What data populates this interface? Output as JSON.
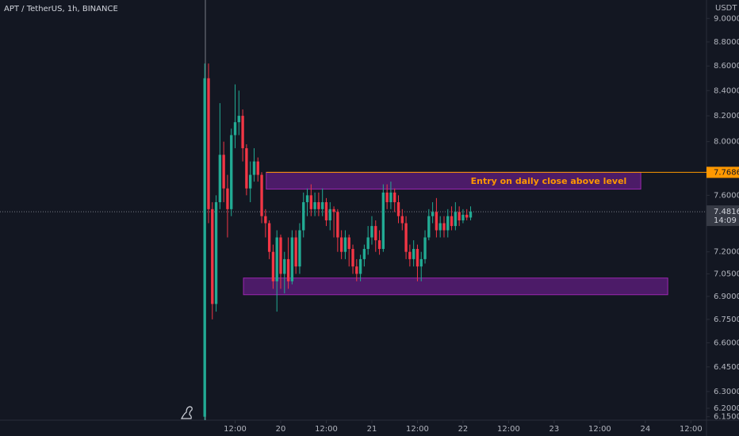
{
  "chart_data": {
    "type": "candlestick",
    "title": "APT / TetherUS, 1h, BINANCE",
    "y_axis_label": "USDT",
    "log_scale": true,
    "up_color": "#22ab94",
    "down_color": "#f23645",
    "x": [
      -20,
      -19,
      -18,
      -17,
      -16,
      -15,
      -14,
      -13,
      -12,
      -11,
      -10,
      -9,
      -8,
      -7,
      -6,
      -5,
      -4,
      -3,
      -2,
      -1,
      0,
      1,
      2,
      3,
      4,
      5,
      6,
      7,
      8,
      9,
      10,
      11,
      12,
      13,
      14,
      15,
      16,
      17,
      18,
      19,
      20,
      21,
      22,
      23,
      24,
      25,
      26,
      27,
      28,
      29,
      30,
      31,
      32,
      33,
      34,
      35,
      36,
      37,
      38,
      39,
      40,
      41,
      42,
      43,
      44,
      45,
      46,
      47,
      48,
      49,
      50
    ],
    "open": [
      6.15,
      8.5,
      7.5,
      6.85,
      7.55,
      7.9,
      7.65,
      7.5,
      8.05,
      8.15,
      8.2,
      7.95,
      7.65,
      7.75,
      7.85,
      7.75,
      7.45,
      7.4,
      7.2,
      7.0,
      7.3,
      7.05,
      7.15,
      7.0,
      7.3,
      7.1,
      7.35,
      7.55,
      7.6,
      7.5,
      7.55,
      7.5,
      7.55,
      7.42,
      7.5,
      7.48,
      7.3,
      7.2,
      7.3,
      7.22,
      7.1,
      7.05,
      7.15,
      7.22,
      7.3,
      7.38,
      7.28,
      7.22,
      7.62,
      7.55,
      7.62,
      7.55,
      7.45,
      7.4,
      7.2,
      7.15,
      7.22,
      7.1,
      7.15,
      7.3,
      7.45,
      7.48,
      7.35,
      7.4,
      7.35,
      7.45,
      7.38,
      7.48,
      7.42,
      7.46,
      7.44
    ],
    "high": [
      8.62,
      8.62,
      7.55,
      7.6,
      8.3,
      8.0,
      7.75,
      8.1,
      8.45,
      8.4,
      8.25,
      7.98,
      7.85,
      7.95,
      7.88,
      7.77,
      7.5,
      7.42,
      7.25,
      7.35,
      7.32,
      7.2,
      7.3,
      7.35,
      7.35,
      7.4,
      7.62,
      7.65,
      7.68,
      7.62,
      7.62,
      7.65,
      7.58,
      7.55,
      7.52,
      7.5,
      7.35,
      7.35,
      7.32,
      7.25,
      7.15,
      7.18,
      7.25,
      7.38,
      7.45,
      7.42,
      7.35,
      7.68,
      7.68,
      7.7,
      7.65,
      7.6,
      7.5,
      7.45,
      7.25,
      7.28,
      7.25,
      7.2,
      7.35,
      7.5,
      7.55,
      7.58,
      7.45,
      7.45,
      7.5,
      7.52,
      7.55,
      7.52,
      7.5,
      7.5,
      7.52
    ],
    "low": [
      6.13,
      7.4,
      6.75,
      6.8,
      7.5,
      7.55,
      7.3,
      7.45,
      7.95,
      8.05,
      7.85,
      7.6,
      7.55,
      7.7,
      7.7,
      7.4,
      7.3,
      7.15,
      6.95,
      6.8,
      6.95,
      6.92,
      6.95,
      6.98,
      7.05,
      7.05,
      7.3,
      7.45,
      7.45,
      7.45,
      7.45,
      7.45,
      7.38,
      7.35,
      7.3,
      7.2,
      7.15,
      7.15,
      7.1,
      7.05,
      7.0,
      7.0,
      7.1,
      7.18,
      7.25,
      7.2,
      7.18,
      7.2,
      7.5,
      7.5,
      7.48,
      7.4,
      7.35,
      7.15,
      7.1,
      7.1,
      7.0,
      7.0,
      7.12,
      7.28,
      7.4,
      7.3,
      7.3,
      7.3,
      7.3,
      7.35,
      7.35,
      7.38,
      7.4,
      7.42,
      7.42
    ],
    "close": [
      8.5,
      7.5,
      6.85,
      7.55,
      7.9,
      7.65,
      7.5,
      8.05,
      8.15,
      8.2,
      7.95,
      7.65,
      7.75,
      7.85,
      7.75,
      7.45,
      7.4,
      7.2,
      7.0,
      7.3,
      7.05,
      7.15,
      7.0,
      7.3,
      7.1,
      7.35,
      7.55,
      7.6,
      7.5,
      7.55,
      7.5,
      7.55,
      7.42,
      7.5,
      7.48,
      7.3,
      7.2,
      7.3,
      7.22,
      7.1,
      7.05,
      7.15,
      7.22,
      7.3,
      7.38,
      7.28,
      7.22,
      7.62,
      7.55,
      7.62,
      7.55,
      7.45,
      7.4,
      7.2,
      7.15,
      7.22,
      7.1,
      7.15,
      7.3,
      7.45,
      7.48,
      7.35,
      7.4,
      7.35,
      7.45,
      7.38,
      7.48,
      7.42,
      7.46,
      7.44,
      7.4816
    ],
    "xlim": [
      -73.9,
      112.1
    ],
    "xticks": [
      {
        "value": -12,
        "label": "12:00"
      },
      {
        "value": 0,
        "label": "20"
      },
      {
        "value": 12,
        "label": "12:00"
      },
      {
        "value": 24,
        "label": "21"
      },
      {
        "value": 36,
        "label": "12:00"
      },
      {
        "value": 48,
        "label": "22"
      },
      {
        "value": 60,
        "label": "12:00"
      },
      {
        "value": 72,
        "label": "23"
      },
      {
        "value": 84,
        "label": "12:00"
      },
      {
        "value": 96,
        "label": "24"
      },
      {
        "value": 108,
        "label": "12:00"
      }
    ],
    "ylim": [
      6.13,
      9.16
    ],
    "yticks": [
      {
        "value": 9,
        "label": "9.0000"
      },
      {
        "value": 8.8,
        "label": "8.8000"
      },
      {
        "value": 8.6,
        "label": "8.6000"
      },
      {
        "value": 8.4,
        "label": "8.4000"
      },
      {
        "value": 8.2,
        "label": "8.2000"
      },
      {
        "value": 8,
        "label": "8.0000"
      },
      {
        "value": 7.6,
        "label": "7.6000"
      },
      {
        "value": 7.2,
        "label": "7.2000"
      },
      {
        "value": 7.05,
        "label": "7.0500"
      },
      {
        "value": 6.9,
        "label": "6.9000"
      },
      {
        "value": 6.75,
        "label": "6.7500"
      },
      {
        "value": 6.6,
        "label": "6.6000"
      },
      {
        "value": 6.45,
        "label": "6.4500"
      },
      {
        "value": 6.3,
        "label": "6.3000"
      },
      {
        "value": 6.2,
        "label": "6.2000"
      },
      {
        "value": 6.15,
        "label": "6.1500"
      }
    ],
    "last_price": {
      "value": 7.4816,
      "label": "7.4816"
    },
    "countdown": "14:09",
    "level": {
      "value": 7.7686,
      "label": "7.7686",
      "start": -3.8,
      "color": "#ff9800"
    },
    "annotation": "Entry on daily close above level",
    "zones": [
      {
        "x": [
          -3.8,
          94.8
        ],
        "y": [
          7.645,
          7.7686
        ]
      },
      {
        "x": [
          -9.8,
          101.9
        ],
        "y": [
          6.911,
          7.022
        ]
      }
    ]
  }
}
